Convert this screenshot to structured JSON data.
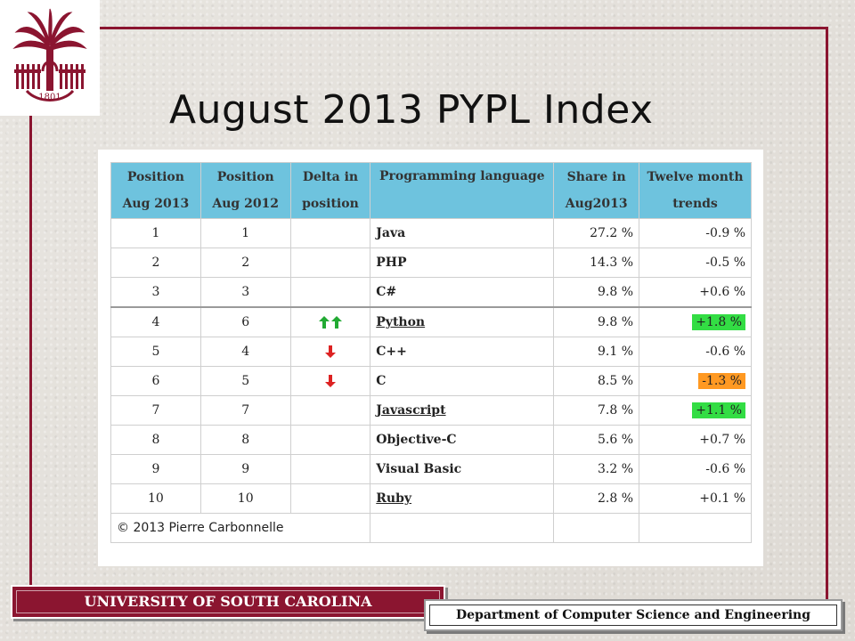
{
  "slide": {
    "title": "August 2013 PYPL Index",
    "university": "UNIVERSITY OF SOUTH CAROLINA",
    "department": "Department of Computer Science and Engineering",
    "logo_year": "1801"
  },
  "colors": {
    "frame": "#8b1530",
    "header_bg": "#6ec3de",
    "language_link": "#b5472c",
    "trend_up_highlight": "#33dd44",
    "trend_down_highlight": "#ff9922",
    "arrow_up": "#22aa33",
    "arrow_down": "#dd2222"
  },
  "table": {
    "headers": {
      "pos2013": [
        "Position",
        "Aug 2013"
      ],
      "pos2012": [
        "Position",
        "Aug 2012"
      ],
      "delta": [
        "Delta in",
        "position"
      ],
      "language": "Programming language",
      "share": [
        "Share in",
        "Aug2013"
      ],
      "trend": [
        "Twelve month",
        "trends"
      ]
    },
    "rows": [
      {
        "pos2013": "1",
        "pos2012": "1",
        "delta": "",
        "language": "Java",
        "share": "27.2 %",
        "trend": "-0.9 %",
        "link": false,
        "highlight": ""
      },
      {
        "pos2013": "2",
        "pos2012": "2",
        "delta": "",
        "language": "PHP",
        "share": "14.3 %",
        "trend": "-0.5 %",
        "link": false,
        "highlight": ""
      },
      {
        "pos2013": "3",
        "pos2012": "3",
        "delta": "",
        "language": "C#",
        "share": "9.8 %",
        "trend": "+0.6 %",
        "link": false,
        "highlight": ""
      },
      {
        "pos2013": "4",
        "pos2012": "6",
        "delta": "up-up",
        "language": "Python",
        "share": "9.8 %",
        "trend": "+1.8 %",
        "link": true,
        "highlight": "up"
      },
      {
        "pos2013": "5",
        "pos2012": "4",
        "delta": "down",
        "language": "C++",
        "share": "9.1 %",
        "trend": "-0.6 %",
        "link": false,
        "highlight": ""
      },
      {
        "pos2013": "6",
        "pos2012": "5",
        "delta": "down",
        "language": "C",
        "share": "8.5 %",
        "trend": "-1.3 %",
        "link": false,
        "highlight": "down"
      },
      {
        "pos2013": "7",
        "pos2012": "7",
        "delta": "",
        "language": "Javascript",
        "share": "7.8 %",
        "trend": "+1.1 %",
        "link": true,
        "highlight": "up"
      },
      {
        "pos2013": "8",
        "pos2012": "8",
        "delta": "",
        "language": "Objective-C",
        "share": "5.6 %",
        "trend": "+0.7 %",
        "link": false,
        "highlight": ""
      },
      {
        "pos2013": "9",
        "pos2012": "9",
        "delta": "",
        "language": "Visual Basic",
        "share": "3.2 %",
        "trend": "-0.6 %",
        "link": false,
        "highlight": ""
      },
      {
        "pos2013": "10",
        "pos2012": "10",
        "delta": "",
        "language": "Ruby",
        "share": "2.8 %",
        "trend": "+0.1 %",
        "link": true,
        "highlight": ""
      }
    ],
    "footer": "© 2013 Pierre Carbonnelle"
  }
}
